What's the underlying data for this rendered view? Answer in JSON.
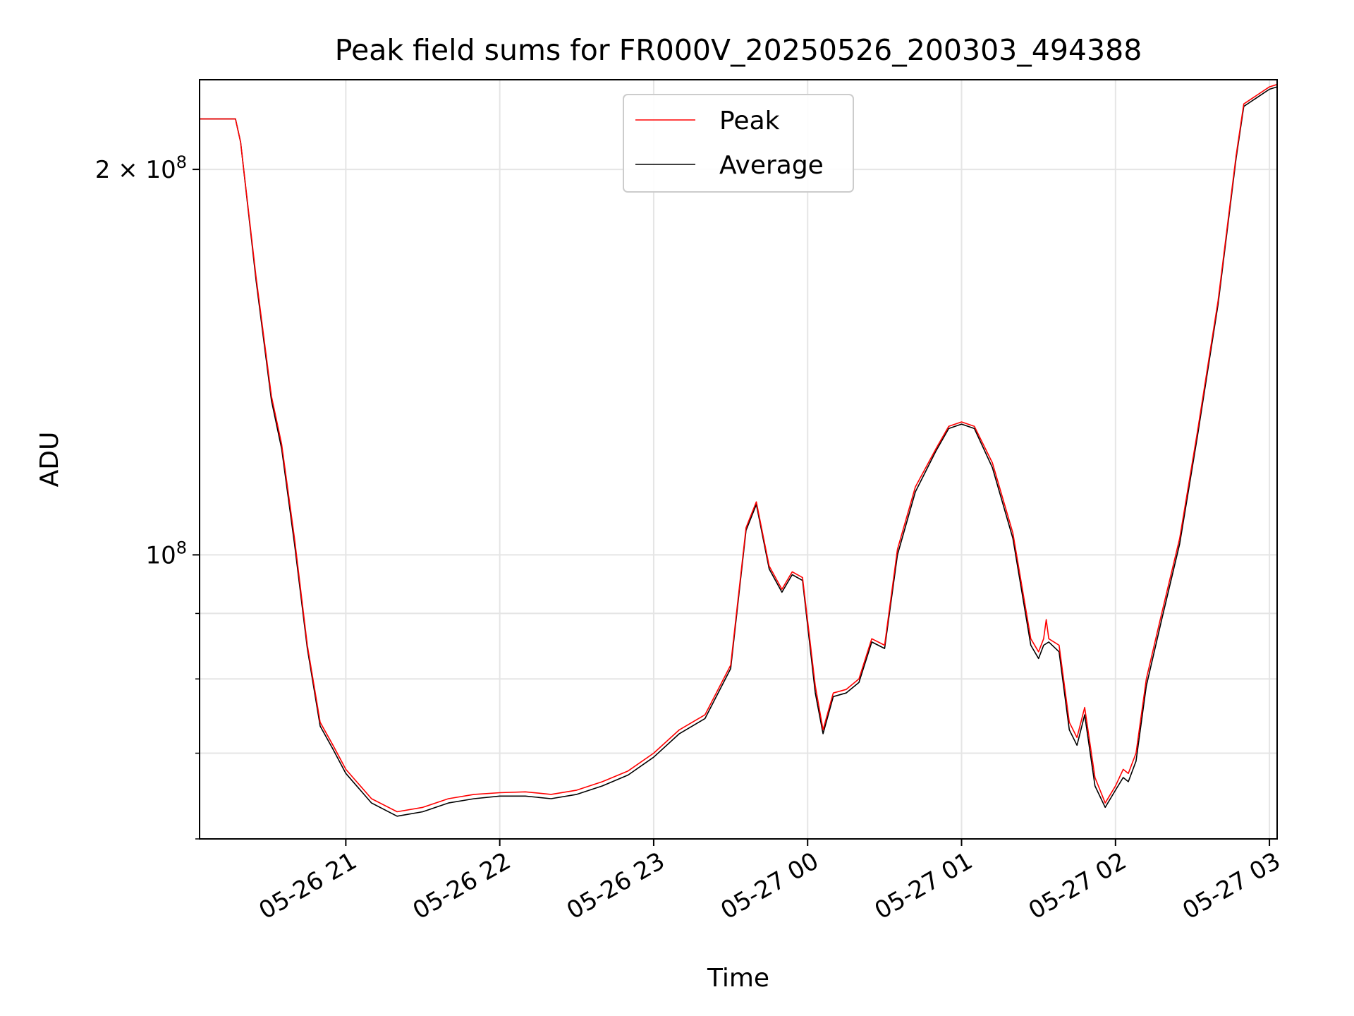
{
  "chart_data": {
    "type": "line",
    "title": "Peak field sums for FR000V_20250526_200303_494388",
    "xlabel": "Time",
    "ylabel": "ADU",
    "yscale": "log",
    "grid": true,
    "legend_position": "top-center",
    "x_ticks": [
      {
        "t": "2025-05-26T21:00",
        "label": "05-26 21"
      },
      {
        "t": "2025-05-26T22:00",
        "label": "05-26 22"
      },
      {
        "t": "2025-05-26T23:00",
        "label": "05-26 23"
      },
      {
        "t": "2025-05-27T00:00",
        "label": "05-27 00"
      },
      {
        "t": "2025-05-27T01:00",
        "label": "05-27 01"
      },
      {
        "t": "2025-05-27T02:00",
        "label": "05-27 02"
      },
      {
        "t": "2025-05-27T03:00",
        "label": "05-27 03"
      }
    ],
    "y_major_ticks": [
      {
        "value": 200000000,
        "base": "2 × 10",
        "exp": "8"
      },
      {
        "value": 100000000,
        "base": "10",
        "exp": "8"
      }
    ],
    "y_minor_ticks": [
      60000000,
      70000000,
      80000000,
      90000000
    ],
    "series": [
      {
        "name": "Peak",
        "color": "#ff0000",
        "x": [
          "2025-05-26T20:03",
          "2025-05-26T20:10",
          "2025-05-26T20:17",
          "2025-05-26T20:19",
          "2025-05-26T20:25",
          "2025-05-26T20:31",
          "2025-05-26T20:35",
          "2025-05-26T20:40",
          "2025-05-26T20:45",
          "2025-05-26T20:50",
          "2025-05-26T20:55",
          "2025-05-26T21:00",
          "2025-05-26T21:10",
          "2025-05-26T21:20",
          "2025-05-26T21:30",
          "2025-05-26T21:40",
          "2025-05-26T21:50",
          "2025-05-26T22:00",
          "2025-05-26T22:10",
          "2025-05-26T22:20",
          "2025-05-26T22:30",
          "2025-05-26T22:40",
          "2025-05-26T22:50",
          "2025-05-26T23:00",
          "2025-05-26T23:10",
          "2025-05-26T23:20",
          "2025-05-26T23:30",
          "2025-05-26T23:36",
          "2025-05-26T23:40",
          "2025-05-26T23:45",
          "2025-05-26T23:50",
          "2025-05-26T23:54",
          "2025-05-26T23:58",
          "2025-05-27T00:03",
          "2025-05-27T00:06",
          "2025-05-27T00:10",
          "2025-05-27T00:15",
          "2025-05-27T00:20",
          "2025-05-27T00:25",
          "2025-05-27T00:30",
          "2025-05-27T00:35",
          "2025-05-27T00:42",
          "2025-05-27T00:50",
          "2025-05-27T00:55",
          "2025-05-27T01:00",
          "2025-05-27T01:05",
          "2025-05-27T01:12",
          "2025-05-27T01:20",
          "2025-05-27T01:27",
          "2025-05-27T01:30",
          "2025-05-27T01:32",
          "2025-05-27T01:33",
          "2025-05-27T01:34",
          "2025-05-27T01:38",
          "2025-05-27T01:42",
          "2025-05-27T01:45",
          "2025-05-27T01:48",
          "2025-05-27T01:52",
          "2025-05-27T01:56",
          "2025-05-27T02:00",
          "2025-05-27T02:03",
          "2025-05-27T02:05",
          "2025-05-27T02:08",
          "2025-05-27T02:12",
          "2025-05-27T02:18",
          "2025-05-27T02:25",
          "2025-05-27T02:32",
          "2025-05-27T02:40",
          "2025-05-27T02:47",
          "2025-05-27T02:50",
          "2025-05-27T03:00",
          "2025-05-27T03:03"
        ],
        "y": [
          219000000,
          219000000,
          219000000,
          210000000,
          165000000,
          133000000,
          122000000,
          103000000,
          85000000,
          74000000,
          71000000,
          68000000,
          64500000,
          63000000,
          63500000,
          64500000,
          65000000,
          65200000,
          65300000,
          65000000,
          65500000,
          66500000,
          67800000,
          70000000,
          73000000,
          75000000,
          82000000,
          105000000,
          110000000,
          98000000,
          94000000,
          97000000,
          96000000,
          79000000,
          73000000,
          78000000,
          78500000,
          80000000,
          86000000,
          85000000,
          101000000,
          113000000,
          121000000,
          126000000,
          127000000,
          126000000,
          118000000,
          104000000,
          86000000,
          84000000,
          86000000,
          89000000,
          86000000,
          85000000,
          74000000,
          72000000,
          76000000,
          67000000,
          64000000,
          66000000,
          68000000,
          67500000,
          70000000,
          80000000,
          90000000,
          103000000,
          125000000,
          158000000,
          205000000,
          225000000,
          232000000,
          233000000
        ]
      },
      {
        "name": "Average",
        "color": "#000000",
        "x": [
          "2025-05-26T20:03",
          "2025-05-26T20:10",
          "2025-05-26T20:17",
          "2025-05-26T20:19",
          "2025-05-26T20:25",
          "2025-05-26T20:31",
          "2025-05-26T20:35",
          "2025-05-26T20:40",
          "2025-05-26T20:45",
          "2025-05-26T20:50",
          "2025-05-26T20:55",
          "2025-05-26T21:00",
          "2025-05-26T21:10",
          "2025-05-26T21:20",
          "2025-05-26T21:30",
          "2025-05-26T21:40",
          "2025-05-26T21:50",
          "2025-05-26T22:00",
          "2025-05-26T22:10",
          "2025-05-26T22:20",
          "2025-05-26T22:30",
          "2025-05-26T22:40",
          "2025-05-26T22:50",
          "2025-05-26T23:00",
          "2025-05-26T23:10",
          "2025-05-26T23:20",
          "2025-05-26T23:30",
          "2025-05-26T23:36",
          "2025-05-26T23:40",
          "2025-05-26T23:45",
          "2025-05-26T23:50",
          "2025-05-26T23:54",
          "2025-05-26T23:58",
          "2025-05-27T00:03",
          "2025-05-27T00:06",
          "2025-05-27T00:10",
          "2025-05-27T00:15",
          "2025-05-27T00:20",
          "2025-05-27T00:25",
          "2025-05-27T00:30",
          "2025-05-27T00:35",
          "2025-05-27T00:42",
          "2025-05-27T00:50",
          "2025-05-27T00:55",
          "2025-05-27T01:00",
          "2025-05-27T01:05",
          "2025-05-27T01:12",
          "2025-05-27T01:20",
          "2025-05-27T01:27",
          "2025-05-27T01:30",
          "2025-05-27T01:32",
          "2025-05-27T01:34",
          "2025-05-27T01:38",
          "2025-05-27T01:42",
          "2025-05-27T01:45",
          "2025-05-27T01:48",
          "2025-05-27T01:52",
          "2025-05-27T01:56",
          "2025-05-27T02:00",
          "2025-05-27T02:03",
          "2025-05-27T02:05",
          "2025-05-27T02:08",
          "2025-05-27T02:12",
          "2025-05-27T02:18",
          "2025-05-27T02:25",
          "2025-05-27T02:32",
          "2025-05-27T02:40",
          "2025-05-27T02:47",
          "2025-05-27T02:50",
          "2025-05-27T03:00",
          "2025-05-27T03:03"
        ],
        "y": [
          219000000,
          219000000,
          219000000,
          210000000,
          164000000,
          132000000,
          121000000,
          102000000,
          84500000,
          73500000,
          70500000,
          67500000,
          64000000,
          62500000,
          63000000,
          64000000,
          64500000,
          64800000,
          64800000,
          64500000,
          65000000,
          66000000,
          67300000,
          69500000,
          72500000,
          74500000,
          81500000,
          104500000,
          109500000,
          97500000,
          93500000,
          96500000,
          95500000,
          78000000,
          72500000,
          77500000,
          78000000,
          79500000,
          85500000,
          84500000,
          100000000,
          112000000,
          120500000,
          125500000,
          126500000,
          125500000,
          117000000,
          103000000,
          85000000,
          83000000,
          85000000,
          85500000,
          84000000,
          73000000,
          71000000,
          75000000,
          66000000,
          63500000,
          65500000,
          67000000,
          66500000,
          69000000,
          79000000,
          89000000,
          102000000,
          124000000,
          157000000,
          204000000,
          224000000,
          231000000,
          232000000
        ]
      }
    ]
  }
}
